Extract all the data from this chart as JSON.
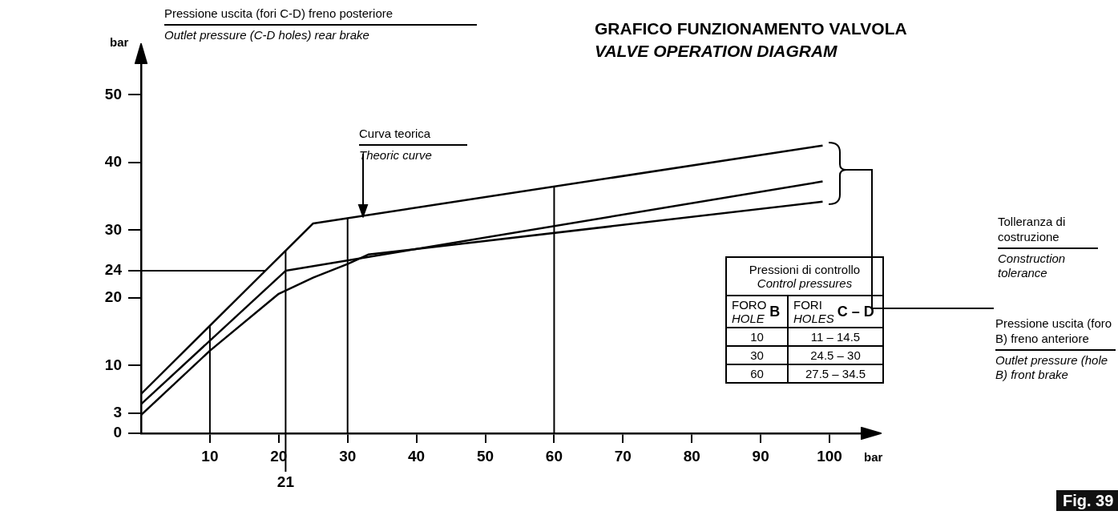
{
  "chart_data": {
    "type": "line",
    "title": "GRAFICO FUNZIONAMENTO VALVOLA",
    "subtitle": "VALVE OPERATION DIAGRAM",
    "ylabel": "Pressione uscita (fori C-D) freno posteriore\nOutlet pressure (C-D holes) rear brake",
    "xlim": [
      0,
      105
    ],
    "ylim": [
      0,
      55
    ],
    "xticks": [
      10,
      20,
      30,
      40,
      50,
      60,
      70,
      80,
      90,
      100
    ],
    "yticks": [
      0,
      3,
      10,
      20,
      24,
      30,
      40,
      50
    ],
    "grid": false,
    "legend": false,
    "marker": "none",
    "line_style": "solid",
    "series": [
      {
        "color": "#000000",
        "x": [
          0,
          25,
          99
        ],
        "values": [
          5.8,
          31,
          42.5
        ]
      },
      {
        "color": "#000000",
        "x": [
          0,
          21,
          99
        ],
        "values": [
          4.3,
          24,
          37.2
        ]
      },
      {
        "color": "#000000",
        "x": [
          0,
          10,
          20,
          25,
          30,
          33,
          99
        ],
        "values": [
          2.7,
          12.2,
          20.6,
          23,
          25,
          26.4,
          34.2
        ]
      }
    ],
    "ref_lines": [
      {
        "axis": "x",
        "value": 10
      },
      {
        "axis": "x",
        "value": 21,
        "label": "21"
      },
      {
        "axis": "x",
        "value": 30
      },
      {
        "axis": "x",
        "value": 60
      },
      {
        "axis": "y",
        "value": 24
      }
    ],
    "annotations": [
      "Curva teorica\nTheoric curve",
      "Tolleranza di costruzione\nConstruction tolerance",
      "Pressioni di controllo\nControl pressures",
      "FORO\nHOLE",
      "B",
      "FORI\nHOLES",
      "C – D",
      "10",
      "11 – 14.5",
      "30",
      "24.5 – 30",
      "60",
      "27.5 – 34.5",
      "bar",
      "bar",
      "Fig. 39",
      "Pressione uscita (foro B) freno anteriore\nOutlet pressure (hole B) front brake"
    ]
  }
}
